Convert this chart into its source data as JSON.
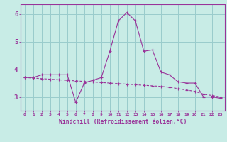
{
  "xlabel": "Windchill (Refroidissement éolien,°C)",
  "bg_color": "#c8ece6",
  "line_color": "#993399",
  "grid_color": "#99cccc",
  "x_data": [
    0,
    1,
    2,
    3,
    4,
    5,
    6,
    7,
    8,
    9,
    10,
    11,
    12,
    13,
    14,
    15,
    16,
    17,
    18,
    19,
    20,
    21,
    22,
    23
  ],
  "y_data1": [
    3.7,
    3.7,
    3.8,
    3.8,
    3.8,
    3.8,
    2.8,
    3.5,
    3.6,
    3.7,
    4.65,
    5.75,
    6.05,
    5.75,
    4.65,
    4.7,
    3.9,
    3.8,
    3.55,
    3.5,
    3.5,
    3.0,
    3.0,
    2.95
  ],
  "y_data2": [
    3.7,
    3.68,
    3.66,
    3.64,
    3.62,
    3.6,
    3.58,
    3.56,
    3.54,
    3.52,
    3.5,
    3.48,
    3.46,
    3.44,
    3.42,
    3.4,
    3.38,
    3.35,
    3.3,
    3.25,
    3.2,
    3.1,
    3.05,
    3.0
  ],
  "xlim": [
    -0.5,
    23.5
  ],
  "ylim": [
    2.5,
    6.35
  ],
  "yticks": [
    3,
    4,
    5,
    6
  ],
  "xticks": [
    0,
    1,
    2,
    3,
    4,
    5,
    6,
    7,
    8,
    9,
    10,
    11,
    12,
    13,
    14,
    15,
    16,
    17,
    18,
    19,
    20,
    21,
    22,
    23
  ]
}
